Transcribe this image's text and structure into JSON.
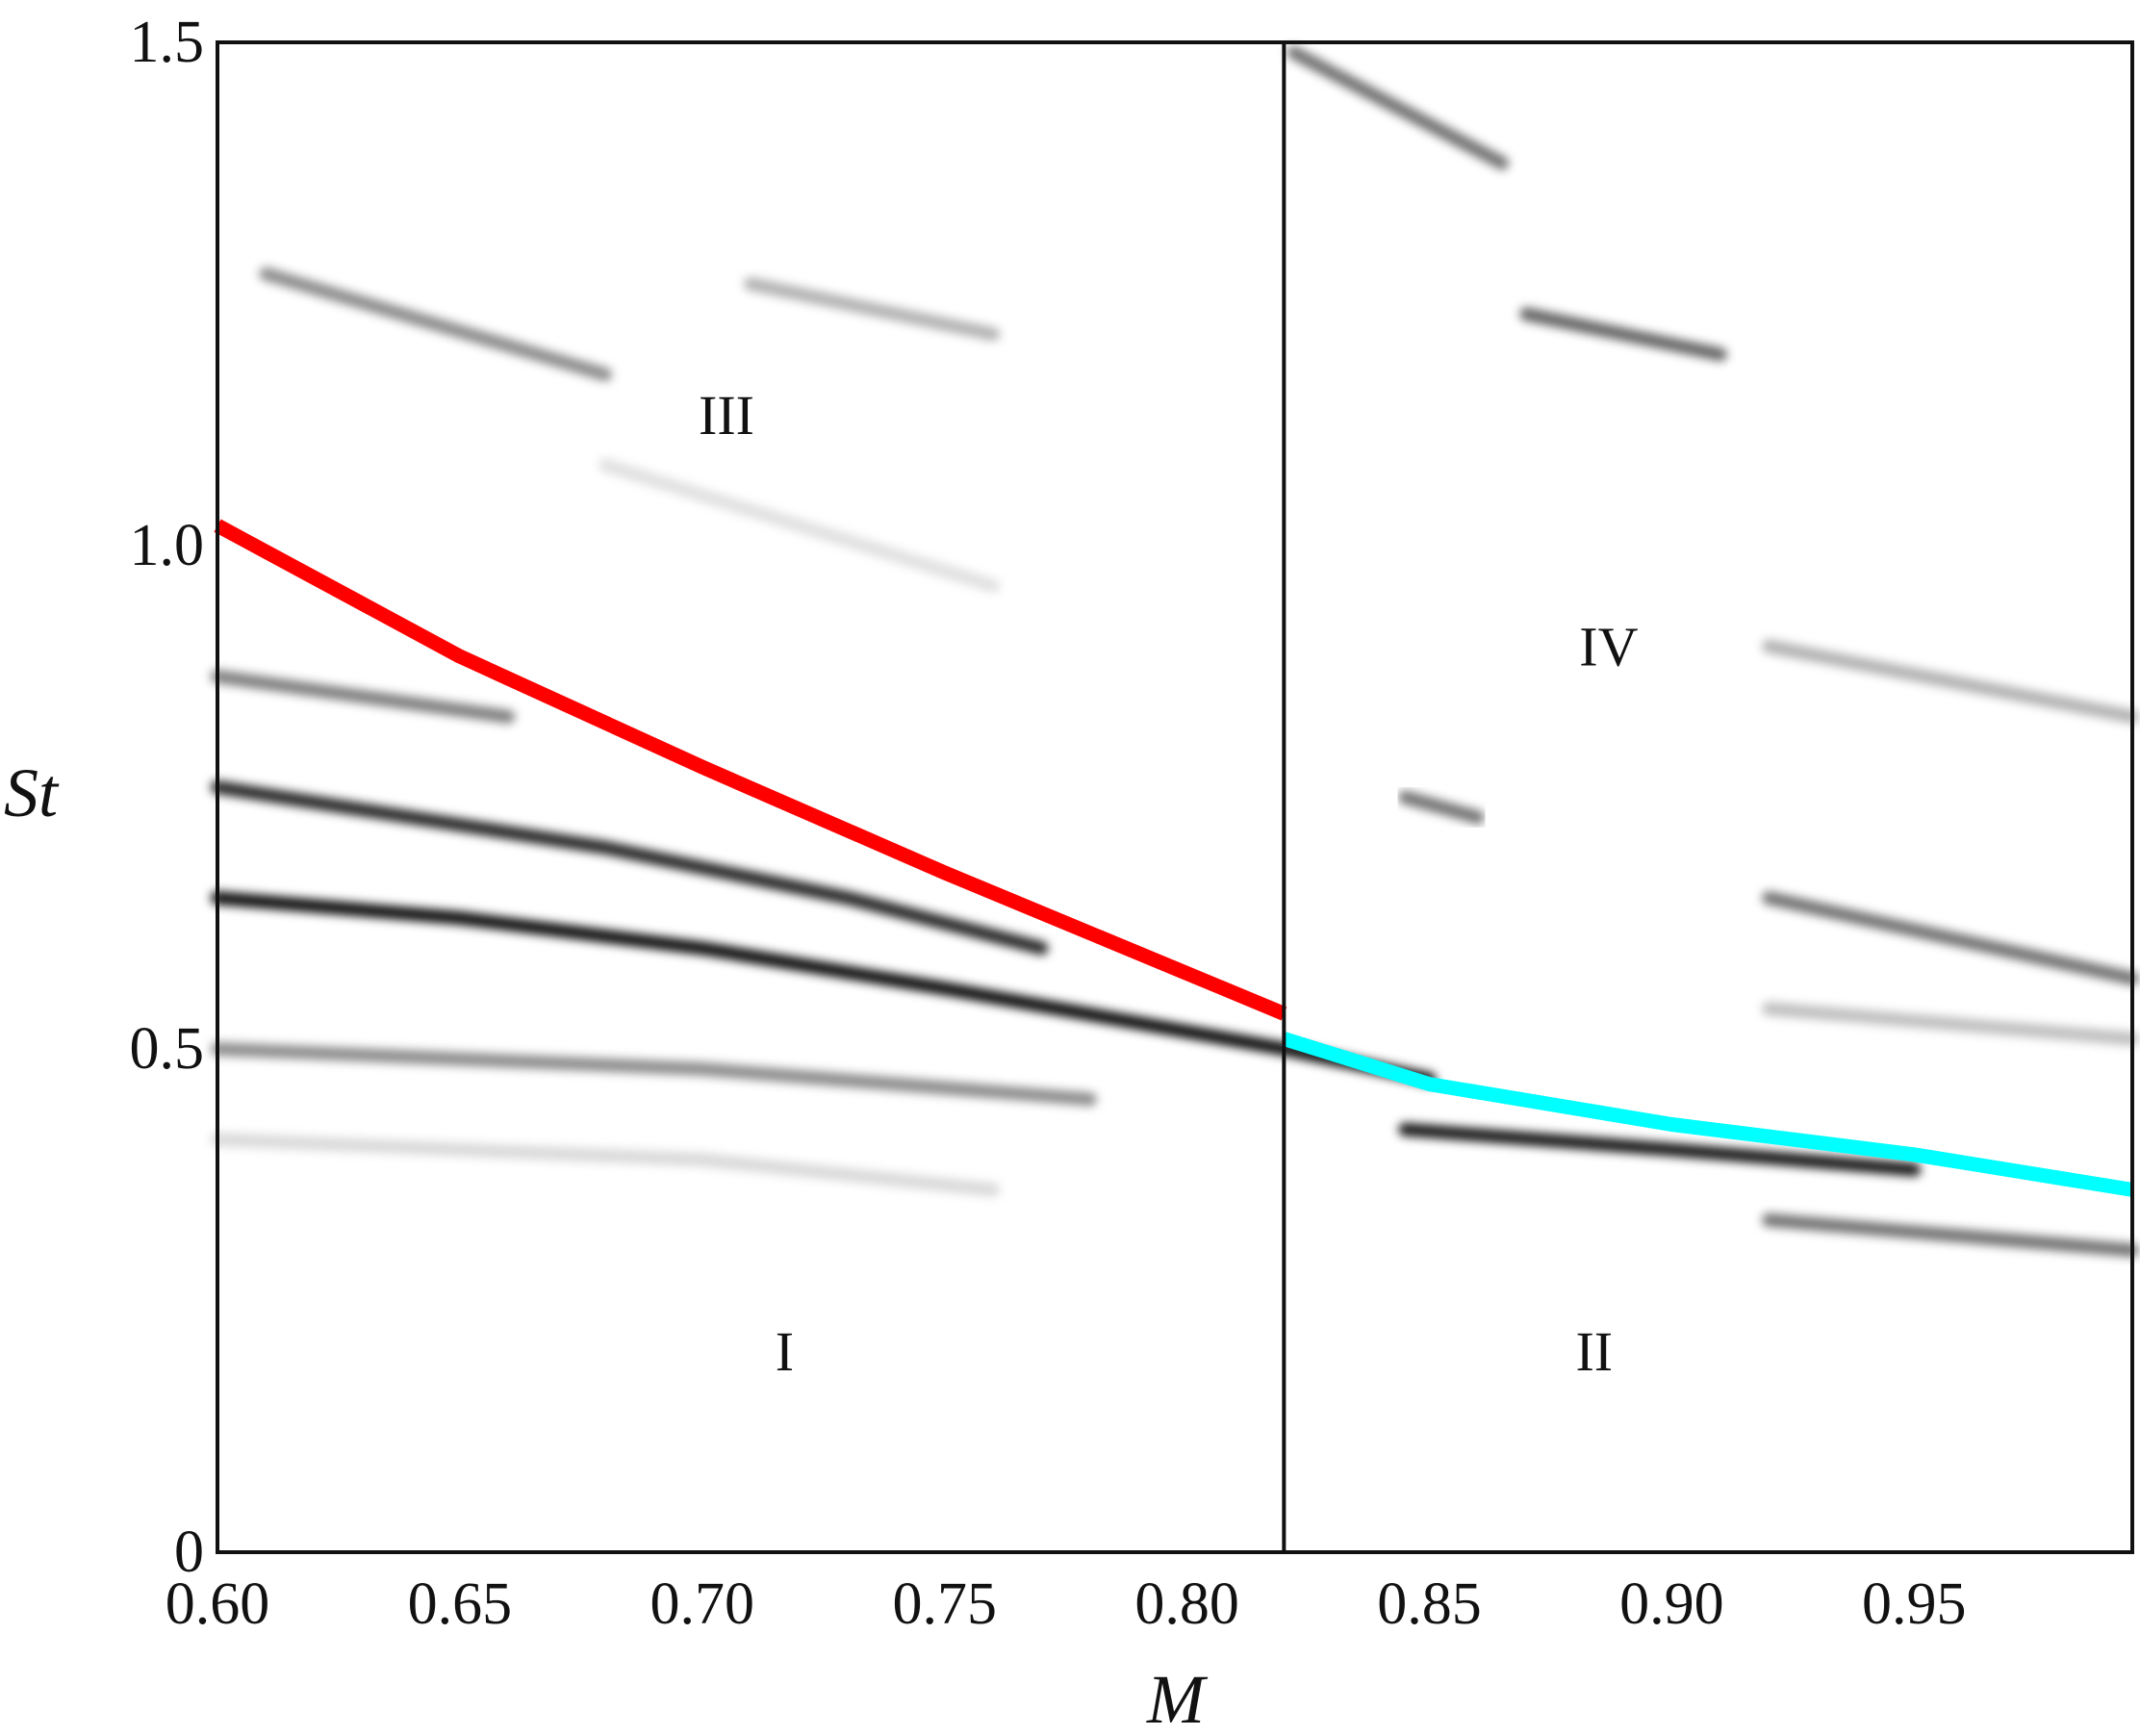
{
  "chart_data": {
    "type": "line",
    "xlabel": "M",
    "ylabel": "St",
    "xlim": [
      0.6,
      0.995
    ],
    "ylim": [
      0,
      1.5
    ],
    "x_ticks": [
      "0.60",
      "0.65",
      "0.70",
      "0.75",
      "0.80",
      "0.85",
      "0.90",
      "0.95"
    ],
    "y_ticks": [
      "0",
      "0.5",
      "1.0",
      "1.5"
    ],
    "grid": false,
    "divider_x": 0.82,
    "regions": [
      {
        "label": "III",
        "x": 0.705,
        "y": 1.13
      },
      {
        "label": "IV",
        "x": 0.887,
        "y": 0.9
      },
      {
        "label": "I",
        "x": 0.717,
        "y": 0.2
      },
      {
        "label": "II",
        "x": 0.884,
        "y": 0.2
      }
    ],
    "series": [
      {
        "color": "#ff0000",
        "x": [
          0.6,
          0.65,
          0.7,
          0.75,
          0.82
        ],
        "y": [
          1.02,
          0.89,
          0.78,
          0.675,
          0.535
        ]
      },
      {
        "color": "#00ffff",
        "x": [
          0.82,
          0.85,
          0.9,
          0.95,
          0.995
        ],
        "y": [
          0.51,
          0.465,
          0.425,
          0.395,
          0.36
        ]
      }
    ],
    "spectral_bands": [
      {
        "x": [
          0.6,
          0.65,
          0.7,
          0.75,
          0.82,
          0.85
        ],
        "y": [
          0.65,
          0.63,
          0.6,
          0.56,
          0.5,
          0.47
        ],
        "intensity": 0.95
      },
      {
        "x": [
          0.6,
          0.68,
          0.73,
          0.77
        ],
        "y": [
          0.76,
          0.7,
          0.65,
          0.6
        ],
        "intensity": 0.85
      },
      {
        "x": [
          0.6,
          0.63,
          0.66
        ],
        "y": [
          0.87,
          0.85,
          0.83
        ],
        "intensity": 0.5
      },
      {
        "x": [
          0.6,
          0.7,
          0.78
        ],
        "y": [
          0.5,
          0.48,
          0.45
        ],
        "intensity": 0.45
      },
      {
        "x": [
          0.6,
          0.7,
          0.76
        ],
        "y": [
          0.41,
          0.39,
          0.36
        ],
        "intensity": 0.15
      },
      {
        "x": [
          0.61,
          0.68
        ],
        "y": [
          1.27,
          1.17
        ],
        "intensity": 0.45
      },
      {
        "x": [
          0.71,
          0.76
        ],
        "y": [
          1.26,
          1.21
        ],
        "intensity": 0.3
      },
      {
        "x": [
          0.68,
          0.76
        ],
        "y": [
          1.08,
          0.96
        ],
        "intensity": 0.12
      },
      {
        "x": [
          0.822,
          0.865
        ],
        "y": [
          1.49,
          1.38
        ],
        "intensity": 0.55
      },
      {
        "x": [
          0.87,
          0.91
        ],
        "y": [
          1.23,
          1.19
        ],
        "intensity": 0.6
      },
      {
        "x": [
          0.845,
          0.86
        ],
        "y": [
          0.75,
          0.73
        ],
        "intensity": 0.55
      },
      {
        "x": [
          0.845,
          0.9,
          0.95
        ],
        "y": [
          0.42,
          0.4,
          0.38
        ],
        "intensity": 0.9
      },
      {
        "x": [
          0.92,
          0.995
        ],
        "y": [
          0.65,
          0.57
        ],
        "intensity": 0.55
      },
      {
        "x": [
          0.92,
          0.995
        ],
        "y": [
          0.54,
          0.51
        ],
        "intensity": 0.25
      },
      {
        "x": [
          0.92,
          0.995
        ],
        "y": [
          0.33,
          0.3
        ],
        "intensity": 0.55
      },
      {
        "x": [
          0.92,
          0.995
        ],
        "y": [
          0.9,
          0.83
        ],
        "intensity": 0.3
      }
    ]
  }
}
